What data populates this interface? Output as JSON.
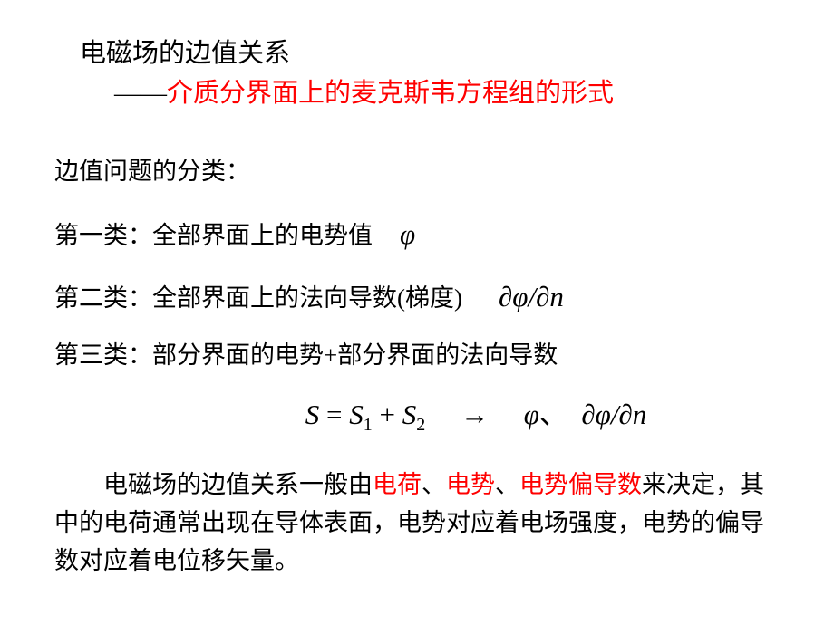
{
  "colors": {
    "background": "#ffffff",
    "text": "#000000",
    "highlight": "#ff0000"
  },
  "typography": {
    "body_font": "SimSun",
    "formula_font": "Times New Roman",
    "title_fontsize": 29,
    "body_fontsize": 27,
    "formula_fontsize": 31
  },
  "title": {
    "line1": "电磁场的边值关系",
    "dash": "——",
    "line2_red": "介质分界面上的麦克斯韦方程组的形式"
  },
  "classification": {
    "header": "边值问题的分类：",
    "cat1": {
      "text": "第一类：全部界面上的电势值",
      "symbol": "φ"
    },
    "cat2": {
      "text": "第二类：全部界面上的法向导数(梯度)",
      "symbol": "∂φ/∂n"
    },
    "cat3": {
      "text": "第三类：部分界面的电势+部分界面的法向导数"
    }
  },
  "equation": {
    "S": "S",
    "eq": " = ",
    "S1": "S",
    "sub1": "1",
    "plus": " + ",
    "S2": "S",
    "sub2": "2",
    "arrow": "→",
    "phi": "φ",
    "comma": "、",
    "dphi": "∂φ/∂n"
  },
  "summary": {
    "t1": "电磁场的边值关系一般由",
    "r1": "电荷",
    "c1": "、",
    "r2": "电势",
    "c2": "、",
    "r3": "电势偏导数",
    "t2": "来决定，其中的电荷通常出现在导体表面，电势对应着电场强度，电势的偏导数对应着电位移矢量。"
  }
}
